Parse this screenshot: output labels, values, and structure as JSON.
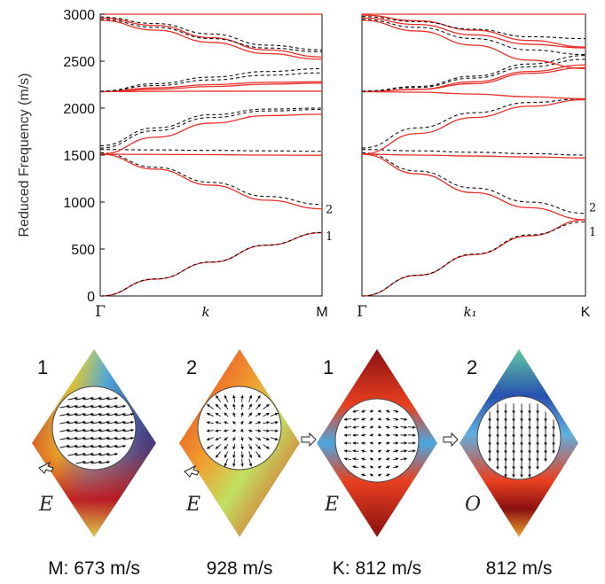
{
  "chart_data": [
    {
      "type": "line",
      "title": "",
      "ylabel": "Reduced Frequency (m/s)",
      "xlabel": "k",
      "x_tick_labels": [
        "Γ",
        "M"
      ],
      "ylim": [
        0,
        3000
      ],
      "y_ticks": [
        0,
        500,
        1000,
        1500,
        2000,
        2500,
        3000
      ],
      "x": [
        0,
        0.25,
        0.5,
        0.75,
        1
      ],
      "line_styles": {
        "solid": "#e8302a",
        "dashed": "#111111"
      },
      "band_labels": [
        {
          "text": "1",
          "y": 640
        },
        {
          "text": "2",
          "y": 930
        }
      ],
      "series": [
        {
          "style": "solid",
          "values": [
            0,
            180,
            360,
            540,
            673
          ]
        },
        {
          "style": "dashed",
          "values": [
            0,
            182,
            362,
            542,
            676
          ]
        },
        {
          "style": "solid",
          "values": [
            1510,
            1350,
            1180,
            1020,
            928
          ]
        },
        {
          "style": "dashed",
          "values": [
            1525,
            1370,
            1210,
            1060,
            975
          ]
        },
        {
          "style": "solid",
          "values": [
            1510,
            1507,
            1505,
            1500,
            1498
          ]
        },
        {
          "style": "dashed",
          "values": [
            1560,
            1555,
            1550,
            1545,
            1540
          ]
        },
        {
          "style": "solid",
          "values": [
            1510,
            1690,
            1840,
            1920,
            1935
          ]
        },
        {
          "style": "dashed",
          "values": [
            1575,
            1760,
            1900,
            1970,
            1985
          ]
        },
        {
          "style": "dashed",
          "values": [
            1600,
            1790,
            1930,
            1990,
            2000
          ]
        },
        {
          "style": "solid",
          "values": [
            2175,
            2178,
            2180,
            2180,
            2180
          ]
        },
        {
          "style": "solid",
          "values": [
            2175,
            2200,
            2230,
            2255,
            2265
          ]
        },
        {
          "style": "solid",
          "values": [
            2175,
            2215,
            2250,
            2275,
            2280
          ]
        },
        {
          "style": "dashed",
          "values": [
            2180,
            2240,
            2300,
            2350,
            2375
          ]
        },
        {
          "style": "dashed",
          "values": [
            2180,
            2260,
            2330,
            2390,
            2420
          ]
        },
        {
          "style": "solid",
          "values": [
            2935,
            2830,
            2700,
            2580,
            2520
          ]
        },
        {
          "style": "solid",
          "values": [
            2960,
            2880,
            2750,
            2620,
            2545
          ]
        },
        {
          "style": "dashed",
          "values": [
            2945,
            2860,
            2740,
            2640,
            2600
          ]
        },
        {
          "style": "dashed",
          "values": [
            2970,
            2900,
            2790,
            2670,
            2620
          ]
        },
        {
          "style": "solid",
          "values": [
            3000,
            3000,
            3000,
            3000,
            3000
          ]
        }
      ]
    },
    {
      "type": "line",
      "title": "",
      "xlabel": "k₁",
      "x_tick_labels": [
        "Γ",
        "K"
      ],
      "ylim": [
        0,
        3000
      ],
      "x": [
        0,
        0.25,
        0.5,
        0.75,
        1
      ],
      "band_labels": [
        {
          "text": "2",
          "y": 950
        },
        {
          "text": "1",
          "y": 690
        }
      ],
      "series": [
        {
          "style": "solid",
          "values": [
            0,
            220,
            440,
            640,
            812
          ]
        },
        {
          "style": "dashed",
          "values": [
            0,
            222,
            445,
            650,
            790
          ]
        },
        {
          "style": "solid",
          "values": [
            1510,
            1300,
            1100,
            940,
            812
          ]
        },
        {
          "style": "dashed",
          "values": [
            1525,
            1330,
            1150,
            1000,
            880
          ]
        },
        {
          "style": "solid",
          "values": [
            1510,
            1500,
            1490,
            1480,
            1470
          ]
        },
        {
          "style": "dashed",
          "values": [
            1560,
            1545,
            1530,
            1515,
            1500
          ]
        },
        {
          "style": "solid",
          "values": [
            1510,
            1730,
            1900,
            2020,
            2090
          ]
        },
        {
          "style": "dashed",
          "values": [
            1575,
            1790,
            1950,
            2060,
            2100
          ]
        },
        {
          "style": "solid",
          "values": [
            2175,
            2170,
            2150,
            2120,
            2100
          ]
        },
        {
          "style": "solid",
          "values": [
            2175,
            2200,
            2260,
            2370,
            2430
          ]
        },
        {
          "style": "solid",
          "values": [
            2175,
            2200,
            2280,
            2390,
            2460
          ]
        },
        {
          "style": "dashed",
          "values": [
            2180,
            2220,
            2320,
            2440,
            2520
          ]
        },
        {
          "style": "dashed",
          "values": [
            2180,
            2230,
            2340,
            2470,
            2560
          ]
        },
        {
          "style": "solid",
          "values": [
            2935,
            2820,
            2670,
            2510,
            2420
          ]
        },
        {
          "style": "solid",
          "values": [
            2960,
            2890,
            2780,
            2680,
            2640
          ]
        },
        {
          "style": "solid",
          "values": [
            2990,
            2930,
            2830,
            2720,
            2650
          ]
        },
        {
          "style": "dashed",
          "values": [
            2945,
            2860,
            2740,
            2620,
            2570
          ]
        },
        {
          "style": "dashed",
          "values": [
            2975,
            2920,
            2840,
            2760,
            2740
          ]
        },
        {
          "style": "solid",
          "values": [
            3000,
            3000,
            3000,
            3000,
            3000
          ]
        }
      ]
    }
  ],
  "mode_panels": [
    {
      "number": "1",
      "parity": "E",
      "caption": "M: 673 m/s",
      "field": "horizontal",
      "arrow_left": false,
      "arrow_bottom": true
    },
    {
      "number": "2",
      "parity": "E",
      "caption": "928 m/s",
      "field": "radial",
      "arrow_left": false,
      "arrow_bottom": true
    },
    {
      "number": "1",
      "parity": "E",
      "caption": "K: 812 m/s",
      "field": "split",
      "arrow_left": true,
      "arrow_bottom": false
    },
    {
      "number": "2",
      "parity": "O",
      "caption": "812 m/s",
      "field": "vertical",
      "arrow_left": true,
      "arrow_bottom": false
    }
  ]
}
